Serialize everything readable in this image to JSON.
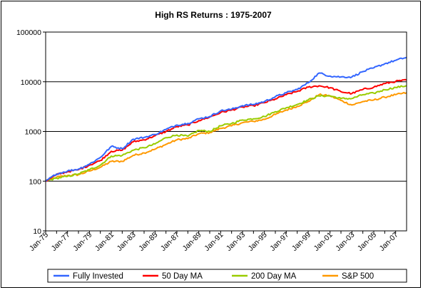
{
  "chart_data": {
    "type": "line",
    "title": "High RS Returns : 1975-2007",
    "xlabel": "",
    "ylabel": "",
    "yscale": "log",
    "ylim": [
      10,
      100000
    ],
    "y_ticks": [
      "10",
      "100",
      "1000",
      "10000",
      "100000"
    ],
    "x_ticks": [
      "Jan-75",
      "Jan-77",
      "Jan-79",
      "Jan-81",
      "Jan-83",
      "Jan-85",
      "Jan-87",
      "Jan-89",
      "Jan-91",
      "Jan-93",
      "Jan-95",
      "Jan-97",
      "Jan-99",
      "Jan-01",
      "Jan-03",
      "Jan-05",
      "Jan-07"
    ],
    "grid": "horizontal",
    "legend_position": "bottom",
    "x": [
      1975,
      1976,
      1977,
      1978,
      1979,
      1980,
      1981,
      1982,
      1983,
      1984,
      1985,
      1986,
      1987,
      1988,
      1989,
      1990,
      1991,
      1992,
      1993,
      1994,
      1995,
      1996,
      1997,
      1998,
      1999,
      2000,
      2001,
      2002,
      2003,
      2004,
      2005,
      2006,
      2007,
      2008
    ],
    "series": [
      {
        "name": "Fully Invested",
        "color": "#3366ff",
        "values": [
          100,
          140,
          160,
          175,
          220,
          300,
          500,
          450,
          700,
          760,
          870,
          1100,
          1350,
          1450,
          1800,
          2000,
          2600,
          2800,
          3300,
          3500,
          4000,
          5000,
          6000,
          7000,
          9500,
          15000,
          13000,
          12500,
          12500,
          16000,
          19000,
          23000,
          27000,
          31000
        ]
      },
      {
        "name": "50 Day MA",
        "color": "#ff0000",
        "values": [
          100,
          135,
          155,
          170,
          210,
          260,
          400,
          420,
          620,
          680,
          820,
          1000,
          1250,
          1350,
          1650,
          1950,
          2400,
          2700,
          3100,
          3300,
          3800,
          4500,
          5500,
          6400,
          7800,
          8300,
          7600,
          6300,
          5800,
          7000,
          7800,
          9200,
          10200,
          10800
        ]
      },
      {
        "name": "200 Day MA",
        "color": "#99cc00",
        "values": [
          100,
          115,
          125,
          140,
          170,
          210,
          320,
          330,
          420,
          470,
          560,
          750,
          850,
          800,
          1050,
          1000,
          1300,
          1450,
          1700,
          1800,
          2000,
          2500,
          3000,
          3500,
          4300,
          5200,
          5200,
          4600,
          4600,
          5500,
          5900,
          6900,
          7700,
          8300
        ]
      },
      {
        "name": "S&P 500",
        "color": "#ff9900",
        "values": [
          100,
          120,
          130,
          135,
          160,
          190,
          250,
          250,
          330,
          370,
          440,
          550,
          680,
          720,
          900,
          950,
          1150,
          1300,
          1500,
          1600,
          1750,
          2200,
          2700,
          3200,
          4000,
          5500,
          5200,
          4200,
          3400,
          4000,
          4300,
          4900,
          5500,
          6000
        ]
      }
    ]
  }
}
